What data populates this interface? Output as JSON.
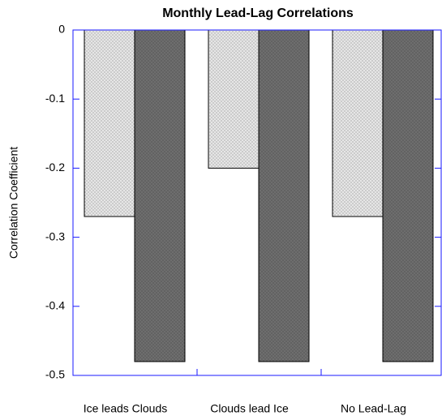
{
  "chart_data": {
    "type": "bar",
    "title": "Monthly Lead-Lag Correlations",
    "y_label": "Correlation Coefficient",
    "categories": [
      "Ice leads Clouds",
      "Clouds lead Ice",
      "No Lead-Lag"
    ],
    "series": [
      {
        "color": "#e6e6e6",
        "values": [
          -0.27,
          -0.2,
          -0.27
        ]
      },
      {
        "color": "#6e6e6e",
        "values": [
          -0.48,
          -0.48,
          -0.48
        ]
      }
    ],
    "ylim": [
      -0.5,
      0
    ],
    "yticks": [
      0,
      -0.1,
      -0.2,
      -0.3,
      -0.4,
      -0.5
    ],
    "axis_color": "#1a1aff"
  }
}
